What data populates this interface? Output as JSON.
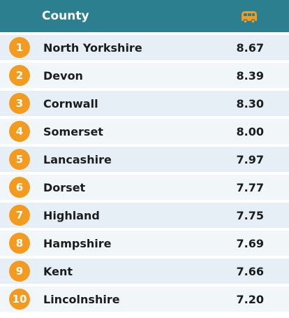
{
  "header": {
    "county_label": "County",
    "icon": "bus-icon",
    "header_color": "#2b7f8e",
    "accent_color": "#f39b1e"
  },
  "rows": [
    {
      "rank": "1",
      "county": "North Yorkshire",
      "score": "8.67"
    },
    {
      "rank": "2",
      "county": "Devon",
      "score": "8.39"
    },
    {
      "rank": "3",
      "county": "Cornwall",
      "score": "8.30"
    },
    {
      "rank": "4",
      "county": "Somerset",
      "score": "8.00"
    },
    {
      "rank": "5",
      "county": "Lancashire",
      "score": "7.97"
    },
    {
      "rank": "6",
      "county": "Dorset",
      "score": "7.77"
    },
    {
      "rank": "7",
      "county": "Highland",
      "score": "7.75"
    },
    {
      "rank": "8",
      "county": "Hampshire",
      "score": "7.69"
    },
    {
      "rank": "9",
      "county": "Kent",
      "score": "7.66"
    },
    {
      "rank": "10",
      "county": "Lincolnshire",
      "score": "7.20"
    }
  ]
}
